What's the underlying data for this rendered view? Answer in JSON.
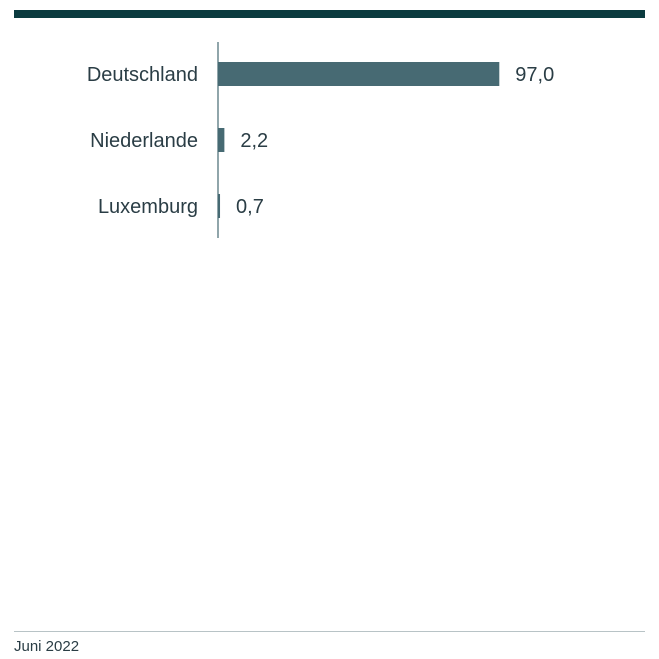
{
  "colors": {
    "bar": "#476a73",
    "top_bar": "#0b3b3f",
    "text": "#2a3d45",
    "axis": "#476a73"
  },
  "footer": {
    "date": "Juni 2022"
  },
  "chart_data": {
    "type": "bar",
    "orientation": "horizontal",
    "categories": [
      "Deutschland",
      "Niederlande",
      "Luxemburg"
    ],
    "values": [
      97.0,
      2.2,
      0.7
    ],
    "value_labels": [
      "97,0",
      "2,2",
      "0,7"
    ],
    "title": "",
    "xlabel": "",
    "ylabel": "",
    "xlim": [
      0,
      100
    ],
    "grid": false,
    "legend": "none"
  }
}
